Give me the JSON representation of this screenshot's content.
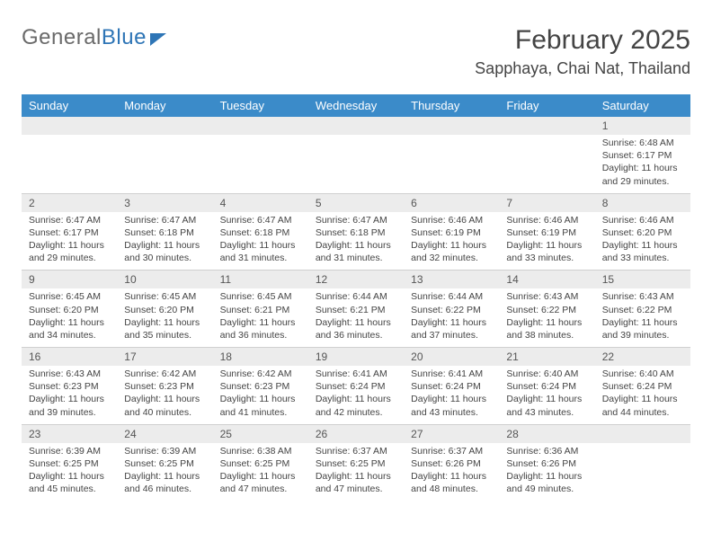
{
  "logo": {
    "text1": "General",
    "text2": "Blue"
  },
  "title": "February 2025",
  "location": "Sapphaya, Chai Nat, Thailand",
  "colors": {
    "header_bg": "#3b8bc9",
    "header_text": "#ffffff",
    "daynum_bg": "#ececec",
    "border": "#cfcfcf",
    "text": "#444444",
    "logo_gray": "#6a6a6a",
    "logo_blue": "#2e75b6",
    "background": "#ffffff"
  },
  "day_labels": [
    "Sunday",
    "Monday",
    "Tuesday",
    "Wednesday",
    "Thursday",
    "Friday",
    "Saturday"
  ],
  "weeks": [
    [
      {
        "n": "",
        "lines": []
      },
      {
        "n": "",
        "lines": []
      },
      {
        "n": "",
        "lines": []
      },
      {
        "n": "",
        "lines": []
      },
      {
        "n": "",
        "lines": []
      },
      {
        "n": "",
        "lines": []
      },
      {
        "n": "1",
        "lines": [
          "Sunrise: 6:48 AM",
          "Sunset: 6:17 PM",
          "Daylight: 11 hours",
          "and 29 minutes."
        ]
      }
    ],
    [
      {
        "n": "2",
        "lines": [
          "Sunrise: 6:47 AM",
          "Sunset: 6:17 PM",
          "Daylight: 11 hours",
          "and 29 minutes."
        ]
      },
      {
        "n": "3",
        "lines": [
          "Sunrise: 6:47 AM",
          "Sunset: 6:18 PM",
          "Daylight: 11 hours",
          "and 30 minutes."
        ]
      },
      {
        "n": "4",
        "lines": [
          "Sunrise: 6:47 AM",
          "Sunset: 6:18 PM",
          "Daylight: 11 hours",
          "and 31 minutes."
        ]
      },
      {
        "n": "5",
        "lines": [
          "Sunrise: 6:47 AM",
          "Sunset: 6:18 PM",
          "Daylight: 11 hours",
          "and 31 minutes."
        ]
      },
      {
        "n": "6",
        "lines": [
          "Sunrise: 6:46 AM",
          "Sunset: 6:19 PM",
          "Daylight: 11 hours",
          "and 32 minutes."
        ]
      },
      {
        "n": "7",
        "lines": [
          "Sunrise: 6:46 AM",
          "Sunset: 6:19 PM",
          "Daylight: 11 hours",
          "and 33 minutes."
        ]
      },
      {
        "n": "8",
        "lines": [
          "Sunrise: 6:46 AM",
          "Sunset: 6:20 PM",
          "Daylight: 11 hours",
          "and 33 minutes."
        ]
      }
    ],
    [
      {
        "n": "9",
        "lines": [
          "Sunrise: 6:45 AM",
          "Sunset: 6:20 PM",
          "Daylight: 11 hours",
          "and 34 minutes."
        ]
      },
      {
        "n": "10",
        "lines": [
          "Sunrise: 6:45 AM",
          "Sunset: 6:20 PM",
          "Daylight: 11 hours",
          "and 35 minutes."
        ]
      },
      {
        "n": "11",
        "lines": [
          "Sunrise: 6:45 AM",
          "Sunset: 6:21 PM",
          "Daylight: 11 hours",
          "and 36 minutes."
        ]
      },
      {
        "n": "12",
        "lines": [
          "Sunrise: 6:44 AM",
          "Sunset: 6:21 PM",
          "Daylight: 11 hours",
          "and 36 minutes."
        ]
      },
      {
        "n": "13",
        "lines": [
          "Sunrise: 6:44 AM",
          "Sunset: 6:22 PM",
          "Daylight: 11 hours",
          "and 37 minutes."
        ]
      },
      {
        "n": "14",
        "lines": [
          "Sunrise: 6:43 AM",
          "Sunset: 6:22 PM",
          "Daylight: 11 hours",
          "and 38 minutes."
        ]
      },
      {
        "n": "15",
        "lines": [
          "Sunrise: 6:43 AM",
          "Sunset: 6:22 PM",
          "Daylight: 11 hours",
          "and 39 minutes."
        ]
      }
    ],
    [
      {
        "n": "16",
        "lines": [
          "Sunrise: 6:43 AM",
          "Sunset: 6:23 PM",
          "Daylight: 11 hours",
          "and 39 minutes."
        ]
      },
      {
        "n": "17",
        "lines": [
          "Sunrise: 6:42 AM",
          "Sunset: 6:23 PM",
          "Daylight: 11 hours",
          "and 40 minutes."
        ]
      },
      {
        "n": "18",
        "lines": [
          "Sunrise: 6:42 AM",
          "Sunset: 6:23 PM",
          "Daylight: 11 hours",
          "and 41 minutes."
        ]
      },
      {
        "n": "19",
        "lines": [
          "Sunrise: 6:41 AM",
          "Sunset: 6:24 PM",
          "Daylight: 11 hours",
          "and 42 minutes."
        ]
      },
      {
        "n": "20",
        "lines": [
          "Sunrise: 6:41 AM",
          "Sunset: 6:24 PM",
          "Daylight: 11 hours",
          "and 43 minutes."
        ]
      },
      {
        "n": "21",
        "lines": [
          "Sunrise: 6:40 AM",
          "Sunset: 6:24 PM",
          "Daylight: 11 hours",
          "and 43 minutes."
        ]
      },
      {
        "n": "22",
        "lines": [
          "Sunrise: 6:40 AM",
          "Sunset: 6:24 PM",
          "Daylight: 11 hours",
          "and 44 minutes."
        ]
      }
    ],
    [
      {
        "n": "23",
        "lines": [
          "Sunrise: 6:39 AM",
          "Sunset: 6:25 PM",
          "Daylight: 11 hours",
          "and 45 minutes."
        ]
      },
      {
        "n": "24",
        "lines": [
          "Sunrise: 6:39 AM",
          "Sunset: 6:25 PM",
          "Daylight: 11 hours",
          "and 46 minutes."
        ]
      },
      {
        "n": "25",
        "lines": [
          "Sunrise: 6:38 AM",
          "Sunset: 6:25 PM",
          "Daylight: 11 hours",
          "and 47 minutes."
        ]
      },
      {
        "n": "26",
        "lines": [
          "Sunrise: 6:37 AM",
          "Sunset: 6:25 PM",
          "Daylight: 11 hours",
          "and 47 minutes."
        ]
      },
      {
        "n": "27",
        "lines": [
          "Sunrise: 6:37 AM",
          "Sunset: 6:26 PM",
          "Daylight: 11 hours",
          "and 48 minutes."
        ]
      },
      {
        "n": "28",
        "lines": [
          "Sunrise: 6:36 AM",
          "Sunset: 6:26 PM",
          "Daylight: 11 hours",
          "and 49 minutes."
        ]
      },
      {
        "n": "",
        "lines": []
      }
    ]
  ]
}
